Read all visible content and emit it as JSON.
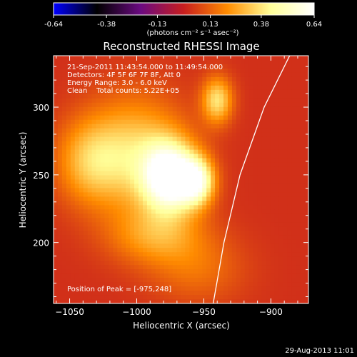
{
  "chart_data": {
    "type": "heatmap",
    "title": "Reconstructed RHESSI Image",
    "colorbar": {
      "ticks": [
        "-0.64",
        "-0.38",
        "-0.13",
        "0.13",
        "0.38",
        "0.64"
      ],
      "range": [
        -0.64,
        0.64
      ],
      "units_label": "(photons cm⁻² s⁻¹ asec⁻²)",
      "colormap": [
        "#0000ff",
        "#000000",
        "#6a0a80",
        "#c81e1e",
        "#ff8c00",
        "#ffff99",
        "#ffffff"
      ]
    },
    "xlabel": "Heliocentric X (arcsec)",
    "ylabel": "Heliocentric Y (arcsec)",
    "xlim": [
      -1062,
      -872
    ],
    "ylim": [
      155,
      338
    ],
    "xticks": [
      -1050,
      -1000,
      -950,
      -900
    ],
    "xtick_labels": [
      "−1050",
      "−1000",
      "−950",
      "−900"
    ],
    "yticks": [
      200,
      250,
      300
    ],
    "ytick_labels": [
      "200",
      "250",
      "300"
    ],
    "annotations": [
      "21-Sep-2011 11:43:54.000 to 11:49:54.000",
      "Detectors: 4F 5F 6F 7F 8F, Att 0",
      "Energy Range: 3.0 - 6.0 keV",
      "Clean    Total counts: 5.22E+05"
    ],
    "peak_text": "Position of Peak = [-975,248]",
    "peak": [
      -975,
      248
    ],
    "limb_points": [
      [
        -943,
        155
      ],
      [
        -935,
        200
      ],
      [
        -923,
        250
      ],
      [
        -905,
        300
      ],
      [
        -885,
        340
      ]
    ],
    "sources": [
      {
        "x": -975,
        "y": 248,
        "peak": 0.64,
        "sx": 14,
        "sy": 18
      },
      {
        "x": -955,
        "y": 245,
        "peak": 0.45,
        "sx": 9,
        "sy": 12
      },
      {
        "x": -1000,
        "y": 265,
        "peak": 0.3,
        "sx": 25,
        "sy": 30
      },
      {
        "x": -1035,
        "y": 260,
        "peak": 0.24,
        "sx": 18,
        "sy": 22
      },
      {
        "x": -940,
        "y": 305,
        "peak": 0.34,
        "sx": 8,
        "sy": 12
      },
      {
        "x": -985,
        "y": 205,
        "peak": 0.2,
        "sx": 25,
        "sy": 15
      },
      {
        "x": -955,
        "y": 180,
        "peak": 0.12,
        "sx": 25,
        "sy": 18
      }
    ],
    "background": 0.035,
    "grid": false
  },
  "footer": {
    "timestamp": "29-Aug-2013 11:01"
  }
}
